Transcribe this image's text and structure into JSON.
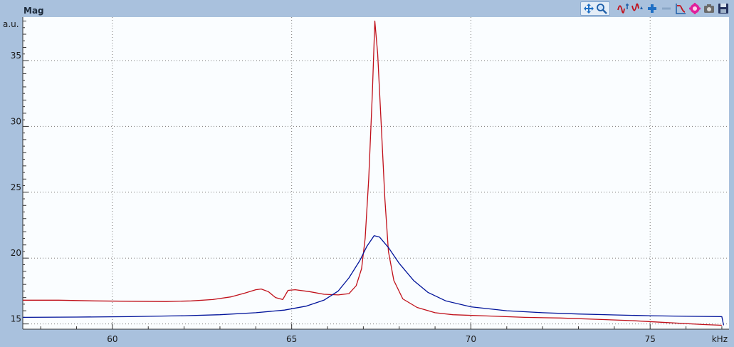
{
  "chart_data": {
    "type": "line",
    "title": "Mag",
    "ylabel": "a.u.",
    "xlabel": "kHz",
    "xlim": [
      57.5,
      77.2
    ],
    "ylim": [
      14.6,
      38.3
    ],
    "x_ticks": [
      "60",
      "65",
      "70",
      "75"
    ],
    "x_tick_values": [
      60,
      65,
      70,
      75
    ],
    "y_ticks": [
      "15",
      "20",
      "25",
      "30",
      "35"
    ],
    "y_tick_values": [
      15,
      20,
      25,
      30,
      35
    ],
    "grid": true,
    "series": [
      {
        "color": "#c0101a",
        "points": [
          [
            57.5,
            16.8
          ],
          [
            58.5,
            16.8
          ],
          [
            59.5,
            16.75
          ],
          [
            60.5,
            16.72
          ],
          [
            61.5,
            16.7
          ],
          [
            62.2,
            16.75
          ],
          [
            62.8,
            16.85
          ],
          [
            63.3,
            17.05
          ],
          [
            63.7,
            17.35
          ],
          [
            64.0,
            17.6
          ],
          [
            64.15,
            17.65
          ],
          [
            64.35,
            17.45
          ],
          [
            64.55,
            17.0
          ],
          [
            64.75,
            16.85
          ],
          [
            64.9,
            17.55
          ],
          [
            65.1,
            17.6
          ],
          [
            65.5,
            17.45
          ],
          [
            65.9,
            17.25
          ],
          [
            66.3,
            17.2
          ],
          [
            66.6,
            17.3
          ],
          [
            66.8,
            17.9
          ],
          [
            66.95,
            19.2
          ],
          [
            67.05,
            21.5
          ],
          [
            67.15,
            26.0
          ],
          [
            67.25,
            32.5
          ],
          [
            67.32,
            38.0
          ],
          [
            67.4,
            35.5
          ],
          [
            67.5,
            30.0
          ],
          [
            67.6,
            24.5
          ],
          [
            67.7,
            20.5
          ],
          [
            67.85,
            18.3
          ],
          [
            68.1,
            16.9
          ],
          [
            68.5,
            16.25
          ],
          [
            69.0,
            15.85
          ],
          [
            69.5,
            15.7
          ],
          [
            70.5,
            15.6
          ],
          [
            71.5,
            15.5
          ],
          [
            72.5,
            15.45
          ],
          [
            73.5,
            15.35
          ],
          [
            74.5,
            15.25
          ],
          [
            75.5,
            15.1
          ],
          [
            76.5,
            14.95
          ],
          [
            77.0,
            14.9
          ]
        ]
      },
      {
        "color": "#00139a",
        "points": [
          [
            57.5,
            15.5
          ],
          [
            59.0,
            15.52
          ],
          [
            60.5,
            15.55
          ],
          [
            62.0,
            15.62
          ],
          [
            63.0,
            15.7
          ],
          [
            64.0,
            15.85
          ],
          [
            64.8,
            16.05
          ],
          [
            65.4,
            16.35
          ],
          [
            65.9,
            16.8
          ],
          [
            66.3,
            17.5
          ],
          [
            66.6,
            18.5
          ],
          [
            66.9,
            19.8
          ],
          [
            67.1,
            20.9
          ],
          [
            67.3,
            21.7
          ],
          [
            67.45,
            21.6
          ],
          [
            67.7,
            20.8
          ],
          [
            68.0,
            19.6
          ],
          [
            68.4,
            18.3
          ],
          [
            68.8,
            17.4
          ],
          [
            69.3,
            16.75
          ],
          [
            70.0,
            16.3
          ],
          [
            71.0,
            16.0
          ],
          [
            72.0,
            15.85
          ],
          [
            73.0,
            15.75
          ],
          [
            74.0,
            15.68
          ],
          [
            75.0,
            15.62
          ],
          [
            76.0,
            15.58
          ],
          [
            77.0,
            15.55
          ],
          [
            77.05,
            14.9
          ]
        ]
      }
    ]
  },
  "toolbar": {
    "icons": [
      "pan-icon",
      "zoom-icon",
      "peak-marker-icon",
      "valley-marker-icon",
      "add-icon",
      "remove-icon",
      "filter-icon",
      "settings-icon",
      "camera-icon",
      "save-icon"
    ]
  }
}
